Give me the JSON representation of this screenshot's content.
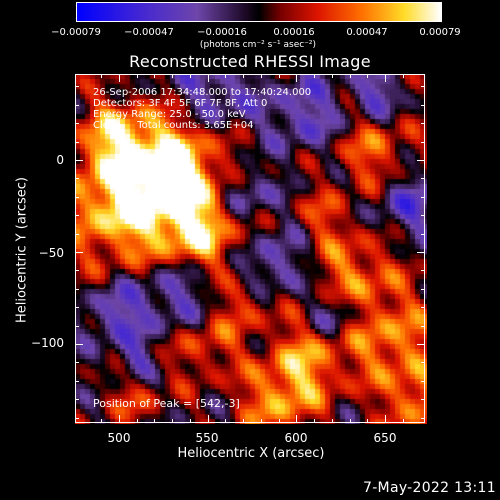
{
  "chart_data": {
    "type": "heatmap",
    "title": "Reconstructed RHESSI Image",
    "xlabel": "Heliocentric X (arcsec)",
    "ylabel": "Heliocentric Y (arcsec)",
    "xlim": [
      478,
      670
    ],
    "ylim": [
      -147,
      33
    ],
    "x_ticks": [
      "500",
      "550",
      "600",
      "650"
    ],
    "y_ticks": [
      "0",
      "−50",
      "−100"
    ],
    "colorbar": {
      "ticks": [
        "−0.00079",
        "−0.00047",
        "−0.00016",
        "0.00016",
        "0.00047",
        "0.00079"
      ],
      "unit": "(photons cm⁻² s⁻¹ asec⁻²)",
      "range": [
        -0.00079,
        0.00079
      ]
    },
    "annotations": {
      "time": "26-Sep-2006 17:34:48.000 to 17:40:24.000",
      "detectors": "Detectors: 3F 4F 5F 6F 7F 8F, Att 0",
      "energy": "Energy Range: 25.0 - 50.0 keV",
      "method": "Clean     Total counts: 3.65E+04",
      "peak": "Position of Peak = [542,-3]"
    },
    "peak_position": [
      542,
      -3
    ],
    "grid": false
  },
  "footer": {
    "timestamp": "7-May-2022 13:11"
  }
}
